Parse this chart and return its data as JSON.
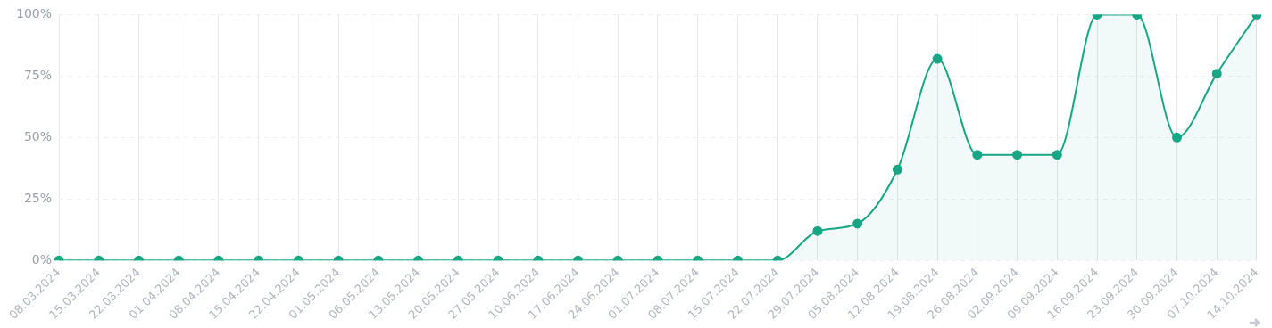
{
  "chart_data": {
    "type": "area",
    "categories": [
      "08.03.2024",
      "15.03.2024",
      "22.03.2024",
      "01.04.2024",
      "08.04.2024",
      "15.04.2024",
      "22.04.2024",
      "01.05.2024",
      "06.05.2024",
      "13.05.2024",
      "20.05.2024",
      "27.05.2024",
      "10.06.2024",
      "17.06.2024",
      "24.06.2024",
      "01.07.2024",
      "08.07.2024",
      "15.07.2024",
      "22.07.2024",
      "29.07.2024",
      "05.08.2024",
      "12.08.2024",
      "19.08.2024",
      "26.08.2024",
      "02.09.2024",
      "09.09.2024",
      "16.09.2024",
      "23.09.2024",
      "30.09.2024",
      "07.10.2024",
      "14.10.2024"
    ],
    "series": [
      {
        "color": "#17a683",
        "values": [
          0,
          0,
          0,
          0,
          0,
          0,
          0,
          0,
          0,
          0,
          0,
          0,
          0,
          0,
          0,
          0,
          0,
          0,
          0,
          12,
          15,
          37,
          82,
          43,
          43,
          43,
          100,
          100,
          50,
          76,
          100
        ]
      }
    ],
    "ylim": [
      0,
      100
    ],
    "yticks": [
      {
        "value": 0,
        "label": "0%"
      },
      {
        "value": 25,
        "label": "25%"
      },
      {
        "value": 50,
        "label": "50%"
      },
      {
        "value": 75,
        "label": "75%"
      },
      {
        "value": 100,
        "label": "100%"
      }
    ],
    "grid": true,
    "legend": false,
    "marker": "circle",
    "line_style": "solid"
  }
}
